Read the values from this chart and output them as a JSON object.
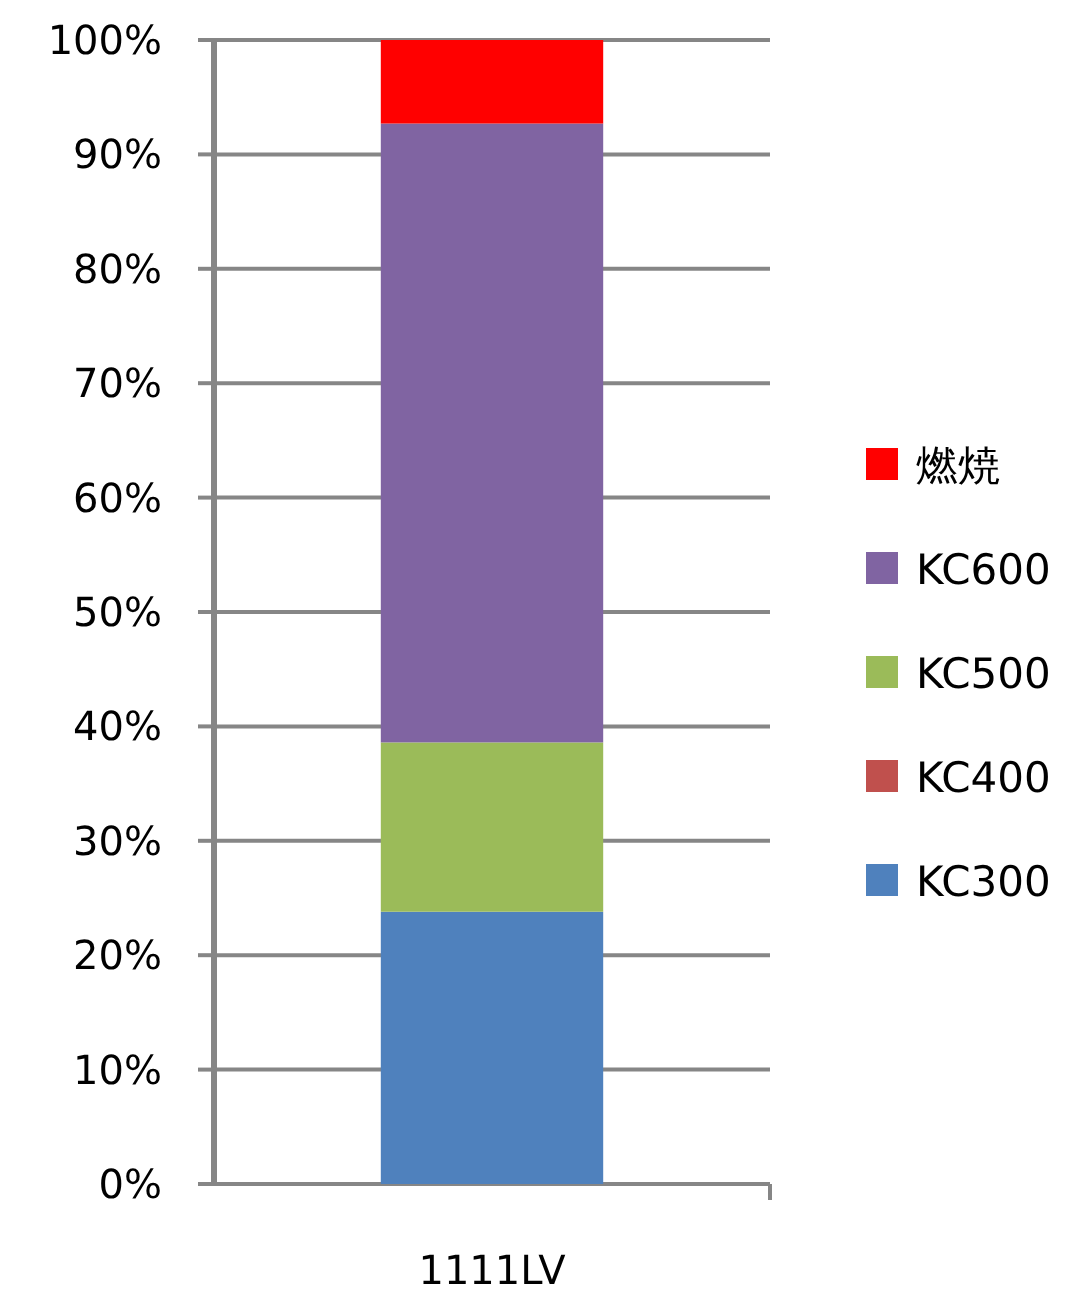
{
  "chart_data": {
    "type": "bar",
    "stacked": true,
    "categories": [
      "1111LV"
    ],
    "series": [
      {
        "name": "KC300",
        "color": "#4f81bd",
        "values": [
          23.8
        ]
      },
      {
        "name": "KC400",
        "color": "#c0504d",
        "values": [
          0
        ]
      },
      {
        "name": "KC500",
        "color": "#9bbb59",
        "values": [
          14.8
        ]
      },
      {
        "name": "KC600",
        "color": "#8064a2",
        "values": [
          54.1
        ]
      },
      {
        "name": "燃焼",
        "color": "#ff0000",
        "values": [
          7.3
        ]
      }
    ],
    "ylim": [
      0,
      100
    ],
    "yticks": [
      {
        "value": 0,
        "label": "0%"
      },
      {
        "value": 10,
        "label": "10%"
      },
      {
        "value": 20,
        "label": "20%"
      },
      {
        "value": 30,
        "label": "30%"
      },
      {
        "value": 40,
        "label": "40%"
      },
      {
        "value": 50,
        "label": "50%"
      },
      {
        "value": 60,
        "label": "60%"
      },
      {
        "value": 70,
        "label": "70%"
      },
      {
        "value": 80,
        "label": "80%"
      },
      {
        "value": 90,
        "label": "90%"
      },
      {
        "value": 100,
        "label": "100%"
      }
    ],
    "grid": "y",
    "legend": "right"
  }
}
